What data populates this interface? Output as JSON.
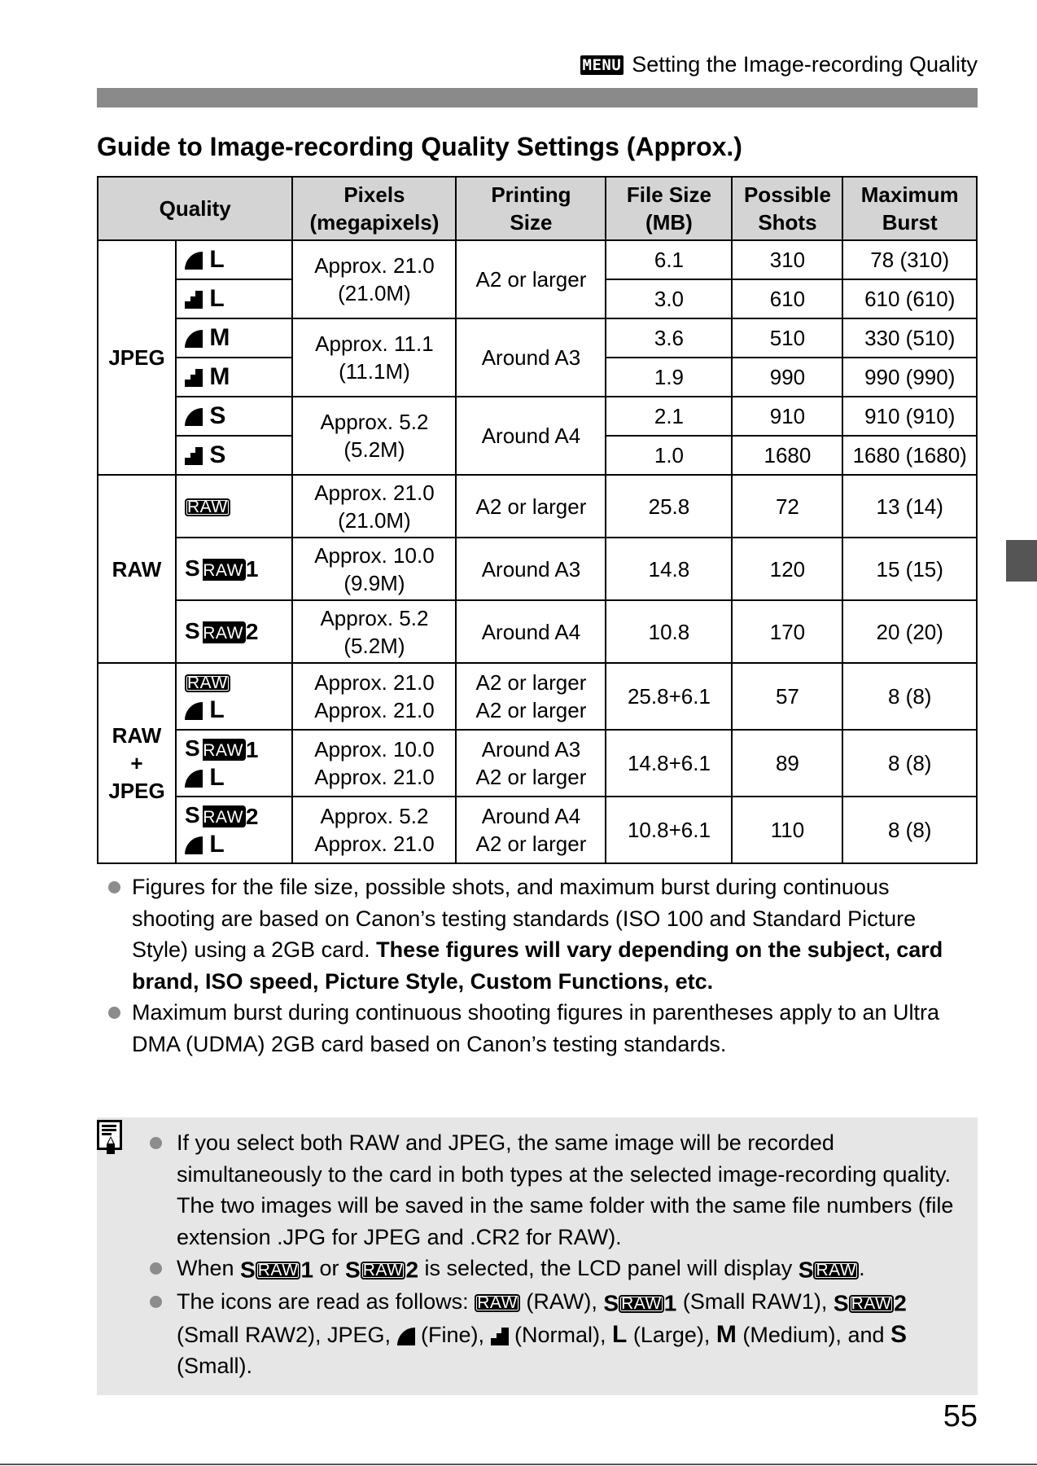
{
  "header": {
    "menu_badge": "MENU",
    "section": "Setting the Image-recording Quality"
  },
  "title": "Guide to Image-recording Quality Settings (Approx.)",
  "icons": {
    "raw_label": "RAW",
    "s_prefix": "S"
  },
  "table": {
    "headers": {
      "quality": "Quality",
      "pixels": [
        "Pixels",
        "(megapixels)"
      ],
      "printing": [
        "Printing",
        "Size"
      ],
      "file_size": [
        "File Size",
        "(MB)"
      ],
      "shots": [
        "Possible",
        "Shots"
      ],
      "burst": [
        "Maximum",
        "Burst"
      ]
    },
    "groups": [
      {
        "label": [
          "JPEG"
        ],
        "type": "j",
        "rows": [
          {
            "q": [
              {
                "comp": "fine",
                "size": "L"
              }
            ],
            "pixels": [
              "Approx. 21.0",
              "(21.0M)"
            ],
            "print": [
              "A2 or larger"
            ],
            "span": 2,
            "file": "6.1",
            "shots": "310",
            "burst": "78 (310)"
          },
          {
            "q": [
              {
                "comp": "normal",
                "size": "L"
              }
            ],
            "file": "3.0",
            "shots": "610",
            "burst": "610 (610)"
          },
          {
            "q": [
              {
                "comp": "fine",
                "size": "M"
              }
            ],
            "pixels": [
              "Approx. 11.1",
              "(11.1M)"
            ],
            "print": [
              "Around A3"
            ],
            "span": 2,
            "file": "3.6",
            "shots": "510",
            "burst": "330 (510)"
          },
          {
            "q": [
              {
                "comp": "normal",
                "size": "M"
              }
            ],
            "file": "1.9",
            "shots": "990",
            "burst": "990 (990)"
          },
          {
            "q": [
              {
                "comp": "fine",
                "size": "S"
              }
            ],
            "pixels": [
              "Approx. 5.2",
              "(5.2M)"
            ],
            "print": [
              "Around A4"
            ],
            "span": 2,
            "file": "2.1",
            "shots": "910",
            "burst": "910 (910)"
          },
          {
            "q": [
              {
                "comp": "normal",
                "size": "S"
              }
            ],
            "file": "1.0",
            "shots": "1680",
            "burst": "1680 (1680)"
          }
        ]
      },
      {
        "label": [
          "RAW"
        ],
        "type": "r",
        "rows": [
          {
            "q": [
              {
                "raw": "RAW"
              }
            ],
            "pixels": [
              "Approx. 21.0",
              "(21.0M)"
            ],
            "print": [
              "A2 or larger"
            ],
            "span": 1,
            "file": "25.8",
            "shots": "72",
            "burst": "13 (14)"
          },
          {
            "q": [
              {
                "raw": "SRAW",
                "num": "1"
              }
            ],
            "pixels": [
              "Approx. 10.0",
              "(9.9M)"
            ],
            "print": [
              "Around A3"
            ],
            "span": 1,
            "file": "14.8",
            "shots": "120",
            "burst": "15 (15)"
          },
          {
            "q": [
              {
                "raw": "SRAW",
                "num": "2"
              }
            ],
            "pixels": [
              "Approx. 5.2",
              "(5.2M)"
            ],
            "print": [
              "Around A4"
            ],
            "span": 1,
            "file": "10.8",
            "shots": "170",
            "burst": "20 (20)"
          }
        ]
      },
      {
        "label": [
          "RAW",
          "+",
          "JPEG"
        ],
        "type": "rj",
        "rows": [
          {
            "q": [
              {
                "raw": "RAW"
              },
              {
                "comp": "fine",
                "size": "L"
              }
            ],
            "pixels": [
              "Approx. 21.0",
              "Approx. 21.0"
            ],
            "print": [
              "A2 or larger",
              "A2 or larger"
            ],
            "span": 1,
            "file": "25.8+6.1",
            "shots": "57",
            "burst": "8 (8)"
          },
          {
            "q": [
              {
                "raw": "SRAW",
                "num": "1"
              },
              {
                "comp": "fine",
                "size": "L"
              }
            ],
            "pixels": [
              "Approx. 10.0",
              "Approx. 21.0"
            ],
            "print": [
              "Around A3",
              "A2 or larger"
            ],
            "span": 1,
            "file": "14.8+6.1",
            "shots": "89",
            "burst": "8 (8)"
          },
          {
            "q": [
              {
                "raw": "SRAW",
                "num": "2"
              },
              {
                "comp": "fine",
                "size": "L"
              }
            ],
            "pixels": [
              "Approx. 5.2",
              "Approx. 21.0"
            ],
            "print": [
              "Around A4",
              "A2 or larger"
            ],
            "span": 1,
            "file": "10.8+6.1",
            "shots": "110",
            "burst": "8 (8)"
          }
        ]
      }
    ]
  },
  "notes": [
    {
      "normal": "Figures for the file size, possible shots, and maximum burst during continuous shooting are based on Canon’s testing standards (ISO 100 and Standard Picture Style) using a 2GB card. ",
      "bold": "These figures will vary depending on the subject, card brand, ISO speed, Picture Style, Custom Functions, etc."
    },
    {
      "normal": "Maximum burst during continuous shooting figures in parentheses apply to an Ultra DMA (UDMA) 2GB card based on Canon’s testing standards.",
      "bold": ""
    }
  ],
  "notebox": {
    "icon": "memo-pencil-icon",
    "items": [
      [
        {
          "t": "If you select both RAW and JPEG, the same image will be recorded simultaneously to the card in both types at the selected image-recording quality. The two images will be saved in the same folder with the same file numbers (file extension .JPG for JPEG and .CR2 for RAW)."
        }
      ],
      [
        {
          "t": "When "
        },
        {
          "icon": "sraw",
          "num": "1"
        },
        {
          "t": " or "
        },
        {
          "icon": "sraw",
          "num": "2"
        },
        {
          "t": " is selected, the LCD panel will display "
        },
        {
          "icon": "sraw",
          "num": ""
        },
        {
          "t": "."
        }
      ],
      [
        {
          "t": "The icons are read as follows: "
        },
        {
          "icon": "raw"
        },
        {
          "t": " (RAW), "
        },
        {
          "icon": "sraw",
          "num": "1"
        },
        {
          "t": " (Small RAW1), "
        },
        {
          "icon": "sraw",
          "num": "2"
        },
        {
          "t": " (Small RAW2), JPEG, "
        },
        {
          "icon": "fine"
        },
        {
          "t": " (Fine), "
        },
        {
          "icon": "normal"
        },
        {
          "t": " (Normal), "
        },
        {
          "letter": "L"
        },
        {
          "t": " (Large), "
        },
        {
          "letter": "M"
        },
        {
          "t": " (Medium), and "
        },
        {
          "letter": "S"
        },
        {
          "t": " (Small)."
        }
      ]
    ]
  },
  "page_number": "55"
}
